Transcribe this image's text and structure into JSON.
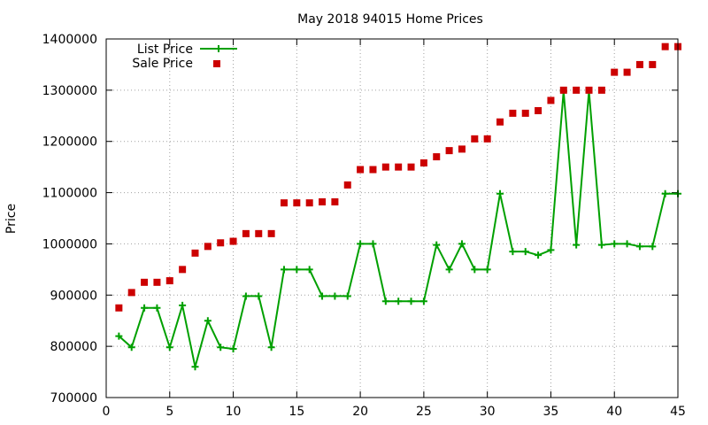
{
  "chart_data": {
    "type": "line",
    "title": "May 2018 94015 Home Prices",
    "xlabel": "",
    "ylabel": "Price",
    "xlim": [
      0,
      45
    ],
    "ylim": [
      700000,
      1400000
    ],
    "xticks": [
      0,
      5,
      10,
      15,
      20,
      25,
      30,
      35,
      40,
      45
    ],
    "yticks": [
      700000,
      800000,
      900000,
      1000000,
      1100000,
      1200000,
      1300000,
      1400000
    ],
    "grid": true,
    "legend_position": "top-left",
    "x": [
      1,
      2,
      3,
      4,
      5,
      6,
      7,
      8,
      9,
      10,
      11,
      12,
      13,
      14,
      15,
      16,
      17,
      18,
      19,
      20,
      21,
      22,
      23,
      24,
      25,
      26,
      27,
      28,
      29,
      30,
      31,
      32,
      33,
      34,
      35,
      36,
      37,
      38,
      39,
      40,
      41,
      42,
      43,
      44,
      45
    ],
    "series": [
      {
        "name": "List Price",
        "style": "linespoints",
        "color": "#00a000",
        "values": [
          820000,
          798000,
          875000,
          875000,
          798000,
          880000,
          760000,
          850000,
          798000,
          795000,
          898000,
          898000,
          798000,
          950000,
          950000,
          950000,
          898000,
          898000,
          898000,
          1000000,
          1000000,
          888000,
          888000,
          888000,
          888000,
          998000,
          950000,
          1000000,
          950000,
          950000,
          1098000,
          985000,
          985000,
          978000,
          988000,
          1298000,
          998000,
          1298000,
          998000,
          1000000,
          1000000,
          995000,
          995000,
          1098000,
          1098000
        ]
      },
      {
        "name": "Sale Price",
        "style": "points",
        "color": "#cc0000",
        "values": [
          875000,
          905000,
          925000,
          925000,
          928000,
          950000,
          982000,
          995000,
          1002000,
          1005000,
          1020000,
          1020000,
          1020000,
          1080000,
          1080000,
          1080000,
          1082000,
          1082000,
          1115000,
          1145000,
          1145000,
          1150000,
          1150000,
          1150000,
          1158000,
          1170000,
          1182000,
          1185000,
          1205000,
          1205000,
          1238000,
          1255000,
          1255000,
          1260000,
          1280000,
          1300000,
          1300000,
          1300000,
          1300000,
          1335000,
          1335000,
          1350000,
          1350000,
          1385000,
          1385000
        ]
      }
    ]
  }
}
